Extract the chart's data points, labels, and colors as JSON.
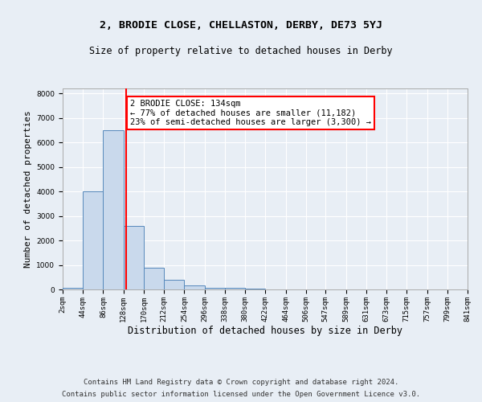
{
  "title": "2, BRODIE CLOSE, CHELLASTON, DERBY, DE73 5YJ",
  "subtitle": "Size of property relative to detached houses in Derby",
  "xlabel": "Distribution of detached houses by size in Derby",
  "ylabel": "Number of detached properties",
  "bar_left_edges": [
    2,
    44,
    86,
    128,
    170,
    212,
    254,
    296,
    338,
    380,
    422,
    464,
    506,
    547,
    589,
    631,
    673,
    715,
    757,
    799
  ],
  "bar_heights": [
    50,
    4000,
    6500,
    2600,
    900,
    400,
    150,
    80,
    50,
    40,
    10,
    5,
    3,
    2,
    2,
    1,
    1,
    1,
    0,
    0
  ],
  "bin_width": 42,
  "bar_color": "#c9d9ec",
  "bar_edgecolor": "#5588bb",
  "property_x": 134,
  "annotation_line1": "2 BRODIE CLOSE: 134sqm",
  "annotation_line2": "← 77% of detached houses are smaller (11,182)",
  "annotation_line3": "23% of semi-detached houses are larger (3,300) →",
  "annotation_box_facecolor": "white",
  "annotation_box_edgecolor": "red",
  "vline_color": "red",
  "ylim": [
    0,
    8200
  ],
  "xtick_labels": [
    "2sqm",
    "44sqm",
    "86sqm",
    "128sqm",
    "170sqm",
    "212sqm",
    "254sqm",
    "296sqm",
    "338sqm",
    "380sqm",
    "422sqm",
    "464sqm",
    "506sqm",
    "547sqm",
    "589sqm",
    "631sqm",
    "673sqm",
    "715sqm",
    "757sqm",
    "799sqm",
    "841sqm"
  ],
  "xtick_positions": [
    2,
    44,
    86,
    128,
    170,
    212,
    254,
    296,
    338,
    380,
    422,
    464,
    506,
    547,
    589,
    631,
    673,
    715,
    757,
    799,
    841
  ],
  "bg_color": "#e8eef5",
  "plot_bg_color": "#e8eef5",
  "footer_line1": "Contains HM Land Registry data © Crown copyright and database right 2024.",
  "footer_line2": "Contains public sector information licensed under the Open Government Licence v3.0.",
  "title_fontsize": 9.5,
  "subtitle_fontsize": 8.5,
  "xlabel_fontsize": 8.5,
  "ylabel_fontsize": 8,
  "tick_fontsize": 6.5,
  "annotation_fontsize": 7.5,
  "footer_fontsize": 6.5
}
